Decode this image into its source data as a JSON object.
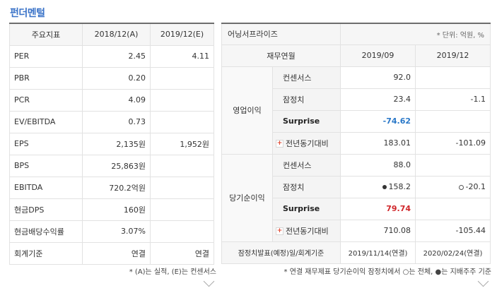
{
  "title": "펀더멘털",
  "left_table": {
    "header": [
      "주요지표",
      "2018/12(A)",
      "2019/12(E)"
    ],
    "rows": [
      {
        "label": "PER",
        "v1": "2.45",
        "v2": "4.11"
      },
      {
        "label": "PBR",
        "v1": "0.20",
        "v2": ""
      },
      {
        "label": "PCR",
        "v1": "4.09",
        "v2": ""
      },
      {
        "label": "EV/EBITDA",
        "v1": "0.73",
        "v2": ""
      },
      {
        "label": "EPS",
        "v1": "2,135원",
        "v2": "1,952원"
      },
      {
        "label": "BPS",
        "v1": "25,863원",
        "v2": ""
      },
      {
        "label": "EBITDA",
        "v1": "720.2억원",
        "v2": ""
      },
      {
        "label": "현금DPS",
        "v1": "160원",
        "v2": ""
      },
      {
        "label": "현금배당수익률",
        "v1": "3.07%",
        "v2": ""
      },
      {
        "label": "회계기준",
        "v1": "연결",
        "v2": "연결"
      }
    ],
    "note": "* (A)는 실적, (E)는 컨센서스"
  },
  "right_table": {
    "header_title": "어닝서프라이즈",
    "unit": "* 단위: 억원, %",
    "col_headers": [
      "재무연월",
      "2019/09",
      "2019/12"
    ],
    "groups": [
      {
        "name": "영업이익",
        "rows": [
          {
            "label": "컨센서스",
            "v1": "92.0",
            "v2": ""
          },
          {
            "label": "잠정치",
            "v1": "23.4",
            "v2": "-1.1"
          },
          {
            "label": "Surprise",
            "v1": "-74.62",
            "v2": ""
          },
          {
            "label": "전년동기대비",
            "v1": "183.01",
            "v2": "-101.09"
          }
        ]
      },
      {
        "name": "당기순이익",
        "rows": [
          {
            "label": "컨센서스",
            "v1": "88.0",
            "v2": ""
          },
          {
            "label": "잠정치",
            "v1": "158.2",
            "v2": "-20.1"
          },
          {
            "label": "Surprise",
            "v1": "79.74",
            "v2": ""
          },
          {
            "label": "전년동기대비",
            "v1": "710.08",
            "v2": "-105.44"
          }
        ]
      }
    ],
    "footer_row": {
      "label": "잠정치발표(예정)일/회계기준",
      "v1": "2019/11/14(연결)",
      "v2": "2020/02/24(연결)"
    },
    "note": "* 연결 재무제표 당기순이익 잠정치에서 ○는 전체, ●는 지배주주 기준"
  },
  "colors": {
    "title": "#3a73c8",
    "surprise_negative": "#2a78c8",
    "surprise_positive": "#d0262a",
    "plus_icon": "#e0462f"
  },
  "icons": [
    "plus-icon",
    "filled-dot-icon",
    "hollow-dot-icon",
    "chevron-down-icon"
  ]
}
